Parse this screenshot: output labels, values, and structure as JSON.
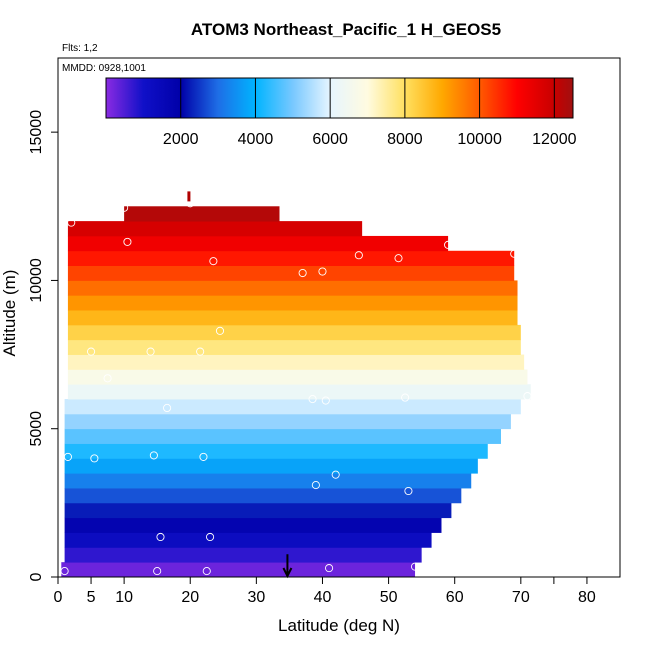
{
  "chart_data": {
    "type": "heatmap",
    "title": "ATOM3 Northeast_Pacific_1 H_GEOS5",
    "subtitle_flights": "Flts: 1,2",
    "subtitle_dates": "MMDD: 0928,1001",
    "xlabel": "Latitude (deg N)",
    "ylabel": "Altitude (m)",
    "xlim": [
      0,
      85
    ],
    "ylim": [
      0,
      17500
    ],
    "x_ticks": [
      0,
      5,
      10,
      20,
      30,
      40,
      50,
      60,
      70,
      80
    ],
    "x_ticks_unlabeled": [
      75
    ],
    "y_ticks": [
      0,
      5000,
      10000,
      15000
    ],
    "colorbar": {
      "min": 0,
      "max": 12500,
      "ticks": [
        2000,
        4000,
        6000,
        8000,
        10000,
        12000
      ],
      "stops": [
        [
          0,
          "#8a2be2"
        ],
        [
          1000,
          "#1010c8"
        ],
        [
          2000,
          "#0000a8"
        ],
        [
          3000,
          "#1e6ee6"
        ],
        [
          4000,
          "#00b4ff"
        ],
        [
          5000,
          "#78c8ff"
        ],
        [
          6000,
          "#e6f5ff"
        ],
        [
          7000,
          "#fffbe0"
        ],
        [
          8000,
          "#ffe060"
        ],
        [
          9000,
          "#ffa800"
        ],
        [
          10000,
          "#ff5a00"
        ],
        [
          11000,
          "#ff0000"
        ],
        [
          12000,
          "#c80000"
        ],
        [
          12500,
          "#a01010"
        ]
      ]
    },
    "altitude_bands": [
      {
        "alt": 250,
        "x0": 0.5,
        "x1": 54.0
      },
      {
        "alt": 750,
        "x0": 1.0,
        "x1": 55.0
      },
      {
        "alt": 1250,
        "x0": 1.0,
        "x1": 56.5
      },
      {
        "alt": 1750,
        "x0": 1.0,
        "x1": 58.0
      },
      {
        "alt": 2250,
        "x0": 1.0,
        "x1": 59.5
      },
      {
        "alt": 2750,
        "x0": 1.0,
        "x1": 61.0
      },
      {
        "alt": 3250,
        "x0": 1.0,
        "x1": 62.5
      },
      {
        "alt": 3750,
        "x0": 1.0,
        "x1": 63.5
      },
      {
        "alt": 4250,
        "x0": 1.0,
        "x1": 65.0
      },
      {
        "alt": 4750,
        "x0": 1.0,
        "x1": 67.0
      },
      {
        "alt": 5250,
        "x0": 1.0,
        "x1": 68.5
      },
      {
        "alt": 5750,
        "x0": 1.0,
        "x1": 70.0
      },
      {
        "alt": 6250,
        "x0": 1.5,
        "x1": 71.5
      },
      {
        "alt": 6750,
        "x0": 1.5,
        "x1": 71.0
      },
      {
        "alt": 7250,
        "x0": 1.5,
        "x1": 70.5
      },
      {
        "alt": 7750,
        "x0": 1.5,
        "x1": 70.0
      },
      {
        "alt": 8250,
        "x0": 1.5,
        "x1": 70.0
      },
      {
        "alt": 8750,
        "x0": 1.5,
        "x1": 69.5
      },
      {
        "alt": 9250,
        "x0": 1.5,
        "x1": 69.5
      },
      {
        "alt": 9750,
        "x0": 1.5,
        "x1": 69.5
      },
      {
        "alt": 10250,
        "x0": 1.5,
        "x1": 69.0
      },
      {
        "alt": 10750,
        "x0": 1.5,
        "x1": 69.0
      },
      {
        "alt": 11250,
        "x0": 1.5,
        "x1": 59.0
      },
      {
        "alt": 11750,
        "x0": 1.5,
        "x1": 46.0
      },
      {
        "alt": 12250,
        "x0": 10.0,
        "x1": 33.5
      }
    ],
    "sample_points": [
      {
        "lat": 1.0,
        "alt": 200
      },
      {
        "lat": 15.0,
        "alt": 200
      },
      {
        "lat": 22.5,
        "alt": 200
      },
      {
        "lat": 41.0,
        "alt": 300
      },
      {
        "lat": 54.0,
        "alt": 350
      },
      {
        "lat": 15.5,
        "alt": 1350
      },
      {
        "lat": 23.0,
        "alt": 1350
      },
      {
        "lat": 39.0,
        "alt": 3100
      },
      {
        "lat": 53.0,
        "alt": 2900
      },
      {
        "lat": 42.0,
        "alt": 3450
      },
      {
        "lat": 1.5,
        "alt": 4050
      },
      {
        "lat": 5.5,
        "alt": 4000
      },
      {
        "lat": 14.5,
        "alt": 4100
      },
      {
        "lat": 22.0,
        "alt": 4050
      },
      {
        "lat": 16.5,
        "alt": 5700
      },
      {
        "lat": 38.5,
        "alt": 6000
      },
      {
        "lat": 40.5,
        "alt": 5950
      },
      {
        "lat": 52.5,
        "alt": 6050
      },
      {
        "lat": 71.0,
        "alt": 6100
      },
      {
        "lat": 7.5,
        "alt": 6700
      },
      {
        "lat": 5.0,
        "alt": 7600
      },
      {
        "lat": 14.0,
        "alt": 7600
      },
      {
        "lat": 21.5,
        "alt": 7600
      },
      {
        "lat": 24.5,
        "alt": 8300
      },
      {
        "lat": 37.0,
        "alt": 10250
      },
      {
        "lat": 40.0,
        "alt": 10300
      },
      {
        "lat": 23.5,
        "alt": 10650
      },
      {
        "lat": 45.5,
        "alt": 10850
      },
      {
        "lat": 51.5,
        "alt": 10750
      },
      {
        "lat": 69.0,
        "alt": 10900
      },
      {
        "lat": 10.5,
        "alt": 11300
      },
      {
        "lat": 59.0,
        "alt": 11200
      },
      {
        "lat": 2.0,
        "alt": 11950
      },
      {
        "lat": 10.0,
        "alt": 12450
      },
      {
        "lat": 20.0,
        "alt": 12600
      }
    ],
    "markers": [
      {
        "lat": 34.7,
        "alt": 700,
        "kind": "down-arrow"
      },
      {
        "lat": 19.8,
        "alt": 12800,
        "kind": "tick"
      }
    ]
  }
}
